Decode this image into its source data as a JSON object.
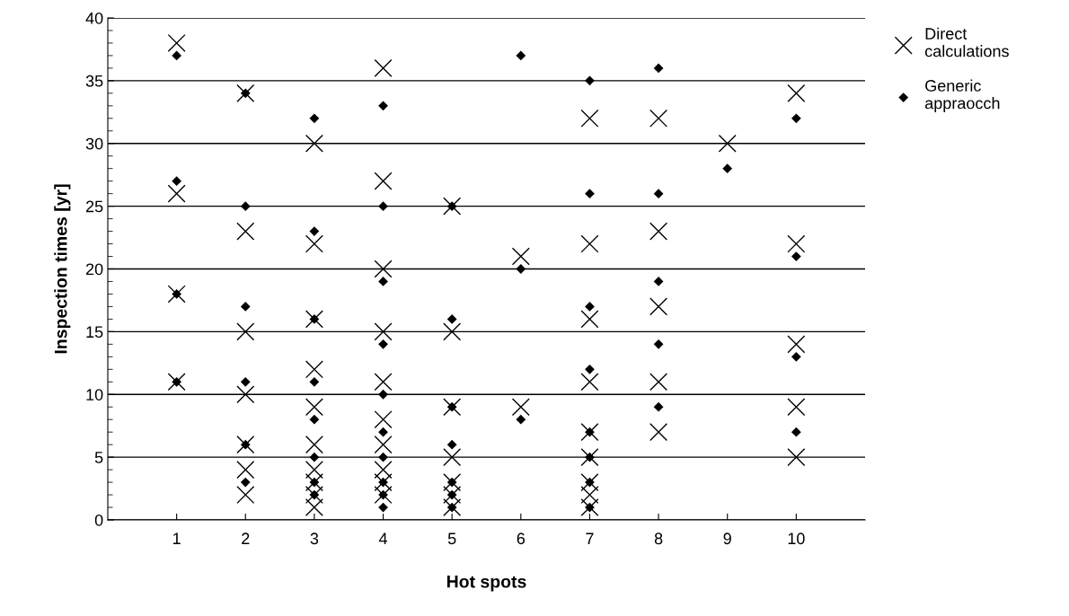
{
  "chart_data": {
    "type": "scatter",
    "xlabel": "Hot spots",
    "ylabel": "Inspection times [yr]",
    "xlim": [
      0,
      11
    ],
    "xticks": [
      1,
      2,
      3,
      4,
      5,
      6,
      7,
      8,
      9,
      10
    ],
    "ylim": [
      0,
      40
    ],
    "yticks": [
      0,
      5,
      10,
      15,
      20,
      25,
      30,
      35,
      40
    ],
    "grid": "y",
    "legend": "top right",
    "series": [
      {
        "name": "Direct calculations",
        "color": "#000000",
        "marker": "cross",
        "x": [
          1,
          1,
          1,
          1,
          2,
          2,
          2,
          2,
          2,
          2,
          2,
          3,
          3,
          3,
          3,
          3,
          3,
          3,
          3,
          3,
          3,
          4,
          4,
          4,
          4,
          4,
          4,
          4,
          4,
          4,
          4,
          5,
          5,
          5,
          5,
          5,
          5,
          5,
          6,
          6,
          7,
          7,
          7,
          7,
          7,
          7,
          7,
          7,
          7,
          8,
          8,
          8,
          8,
          8,
          9,
          10,
          10,
          10,
          10,
          10
        ],
        "values": [
          38,
          26,
          18,
          11,
          34,
          23,
          15,
          10,
          6,
          4,
          2,
          30,
          22,
          16,
          12,
          9,
          6,
          4,
          3,
          2,
          1,
          36,
          27,
          20,
          15,
          11,
          8,
          6,
          4,
          3,
          2,
          25,
          15,
          9,
          5,
          3,
          2,
          1,
          21,
          9,
          32,
          22,
          16,
          11,
          7,
          5,
          3,
          2,
          1,
          32,
          23,
          17,
          11,
          7,
          30,
          34,
          22,
          14,
          9,
          5
        ]
      },
      {
        "name": "Generic appraocch",
        "color": "#000000",
        "marker": "diamond",
        "x": [
          1,
          1,
          1,
          1,
          2,
          2,
          2,
          2,
          2,
          2,
          3,
          3,
          3,
          3,
          3,
          3,
          3,
          3,
          4,
          4,
          4,
          4,
          4,
          4,
          4,
          4,
          4,
          4,
          5,
          5,
          5,
          5,
          5,
          5,
          5,
          6,
          6,
          6,
          7,
          7,
          7,
          7,
          7,
          7,
          7,
          7,
          8,
          8,
          8,
          8,
          8,
          9,
          10,
          10,
          10,
          10
        ],
        "values": [
          37,
          27,
          18,
          11,
          34,
          25,
          17,
          11,
          6,
          3,
          32,
          23,
          16,
          11,
          8,
          5,
          3,
          2,
          33,
          25,
          19,
          14,
          10,
          7,
          5,
          3,
          2,
          1,
          25,
          16,
          9,
          6,
          3,
          2,
          1,
          37,
          20,
          8,
          35,
          26,
          17,
          12,
          7,
          5,
          3,
          1,
          36,
          26,
          19,
          14,
          9,
          28,
          32,
          21,
          13,
          7
        ]
      }
    ]
  }
}
